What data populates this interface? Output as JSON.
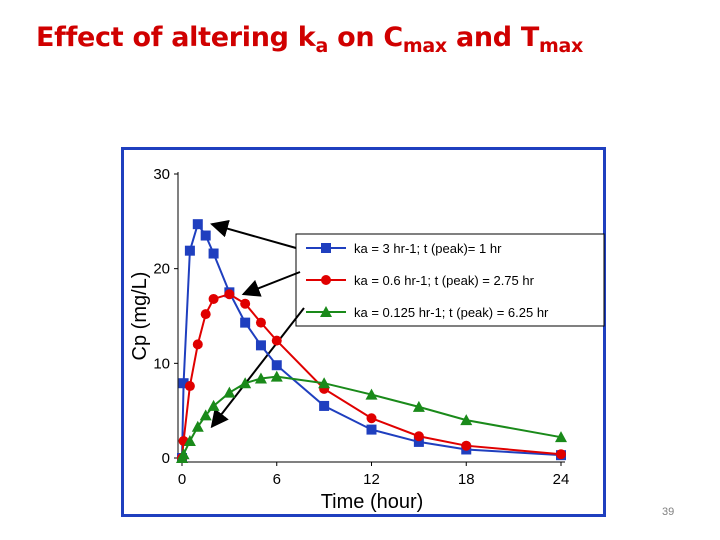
{
  "slide": {
    "title_prefix": "Effect of altering k",
    "title_sub1": "a",
    "title_mid": " on C",
    "title_sub2": "max",
    "title_mid2": " and T",
    "title_sub3": "max",
    "page_number": "39"
  },
  "chart_data": {
    "type": "line",
    "xlabel": "Time (hour)",
    "ylabel": "Cp (mg/L)",
    "xlim": [
      0,
      24
    ],
    "ylim": [
      0,
      30
    ],
    "xticks": [
      "0",
      "6",
      "12",
      "18",
      "24"
    ],
    "yticks": [
      "0",
      "10",
      "20",
      "30"
    ],
    "grid": false,
    "legend_position": "upper-right",
    "series": [
      {
        "name": "ka = 3 hr-1; t (peak)= 1 hr",
        "color": "#1f3fbf",
        "marker": "square",
        "points": [
          [
            0,
            0
          ],
          [
            0.1,
            7.9
          ],
          [
            0.5,
            21.9
          ],
          [
            1,
            24.7
          ],
          [
            1.5,
            23.5
          ],
          [
            2,
            21.6
          ],
          [
            3,
            17.5
          ],
          [
            4,
            14.3
          ],
          [
            5,
            11.9
          ],
          [
            6,
            9.8
          ],
          [
            9,
            5.5
          ],
          [
            12,
            3.0
          ],
          [
            15,
            1.7
          ],
          [
            18,
            0.9
          ],
          [
            24,
            0.3
          ]
        ]
      },
      {
        "name": "ka = 0.6 hr-1; t (peak) = 2.75 hr",
        "color": "#e00000",
        "marker": "circle",
        "points": [
          [
            0,
            0
          ],
          [
            0.1,
            1.8
          ],
          [
            0.5,
            7.6
          ],
          [
            1,
            12.0
          ],
          [
            1.5,
            15.2
          ],
          [
            2,
            16.8
          ],
          [
            3,
            17.3
          ],
          [
            4,
            16.3
          ],
          [
            5,
            14.3
          ],
          [
            6,
            12.4
          ],
          [
            9,
            7.3
          ],
          [
            12,
            4.2
          ],
          [
            15,
            2.3
          ],
          [
            18,
            1.3
          ],
          [
            24,
            0.4
          ]
        ]
      },
      {
        "name": "ka = 0.125 hr-1; t (peak) = 6.25 hr",
        "color": "#1a8a1a",
        "marker": "triangle",
        "points": [
          [
            0,
            0
          ],
          [
            0.1,
            0.4
          ],
          [
            0.5,
            1.8
          ],
          [
            1,
            3.3
          ],
          [
            1.5,
            4.5
          ],
          [
            2,
            5.5
          ],
          [
            3,
            6.9
          ],
          [
            4,
            7.9
          ],
          [
            5,
            8.4
          ],
          [
            6,
            8.6
          ],
          [
            9,
            7.9
          ],
          [
            12,
            6.7
          ],
          [
            15,
            5.4
          ],
          [
            18,
            4.0
          ],
          [
            24,
            2.2
          ]
        ]
      }
    ]
  }
}
